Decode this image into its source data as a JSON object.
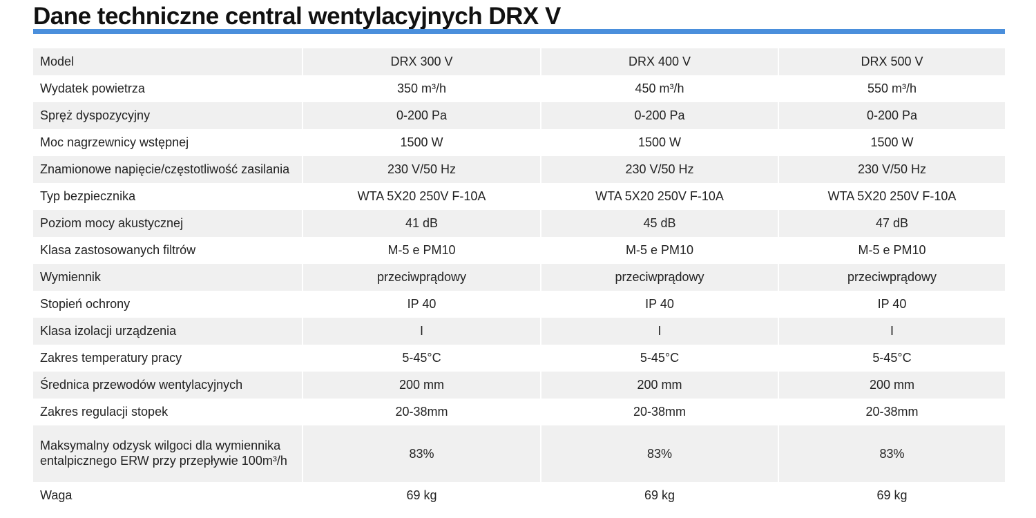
{
  "header": {
    "title": "Dane techniczne central wentylacyjnych DRX V"
  },
  "table": {
    "rows": [
      [
        "Model",
        "DRX 300 V",
        "DRX 400 V",
        "DRX 500 V"
      ],
      [
        "Wydatek powietrza",
        "350 m³/h",
        "450 m³/h",
        "550 m³/h"
      ],
      [
        "Spręż dyspozycyjny",
        "0-200 Pa",
        "0-200 Pa",
        "0-200 Pa"
      ],
      [
        "Moc nagrzewnicy wstępnej",
        "1500 W",
        "1500 W",
        "1500 W"
      ],
      [
        "Znamionowe napięcie/częstotliwość zasilania",
        "230 V/50 Hz",
        "230 V/50 Hz",
        "230 V/50 Hz"
      ],
      [
        "Typ bezpiecznika",
        "WTA 5X20 250V F-10A",
        "WTA 5X20 250V F-10A",
        "WTA 5X20 250V F-10A"
      ],
      [
        "Poziom mocy akustycznej",
        "41 dB",
        "45 dB",
        "47 dB"
      ],
      [
        "Klasa zastosowanych filtrów",
        "M-5 e PM10",
        "M-5 e PM10",
        "M-5 e PM10"
      ],
      [
        "Wymiennik",
        "przeciwprądowy",
        "przeciwprądowy",
        "przeciwprądowy"
      ],
      [
        "Stopień ochrony",
        "IP 40",
        "IP 40",
        "IP 40"
      ],
      [
        "Klasa izolacji urządzenia",
        "I",
        "I",
        "I"
      ],
      [
        "Zakres temperatury pracy",
        "5-45°C",
        "5-45°C",
        "5-45°C"
      ],
      [
        "Średnica przewodów wentylacyjnych",
        "200 mm",
        "200 mm",
        "200 mm"
      ],
      [
        "Zakres regulacji stopek",
        "20-38mm",
        "20-38mm",
        "20-38mm"
      ],
      [
        "Maksymalny odzysk wilgoci dla wymiennika entalpicznego ERW przy przepływie 100m³/h",
        "83%",
        "83%",
        "83%"
      ],
      [
        "Waga",
        "69 kg",
        "69 kg",
        "69 kg"
      ]
    ]
  }
}
